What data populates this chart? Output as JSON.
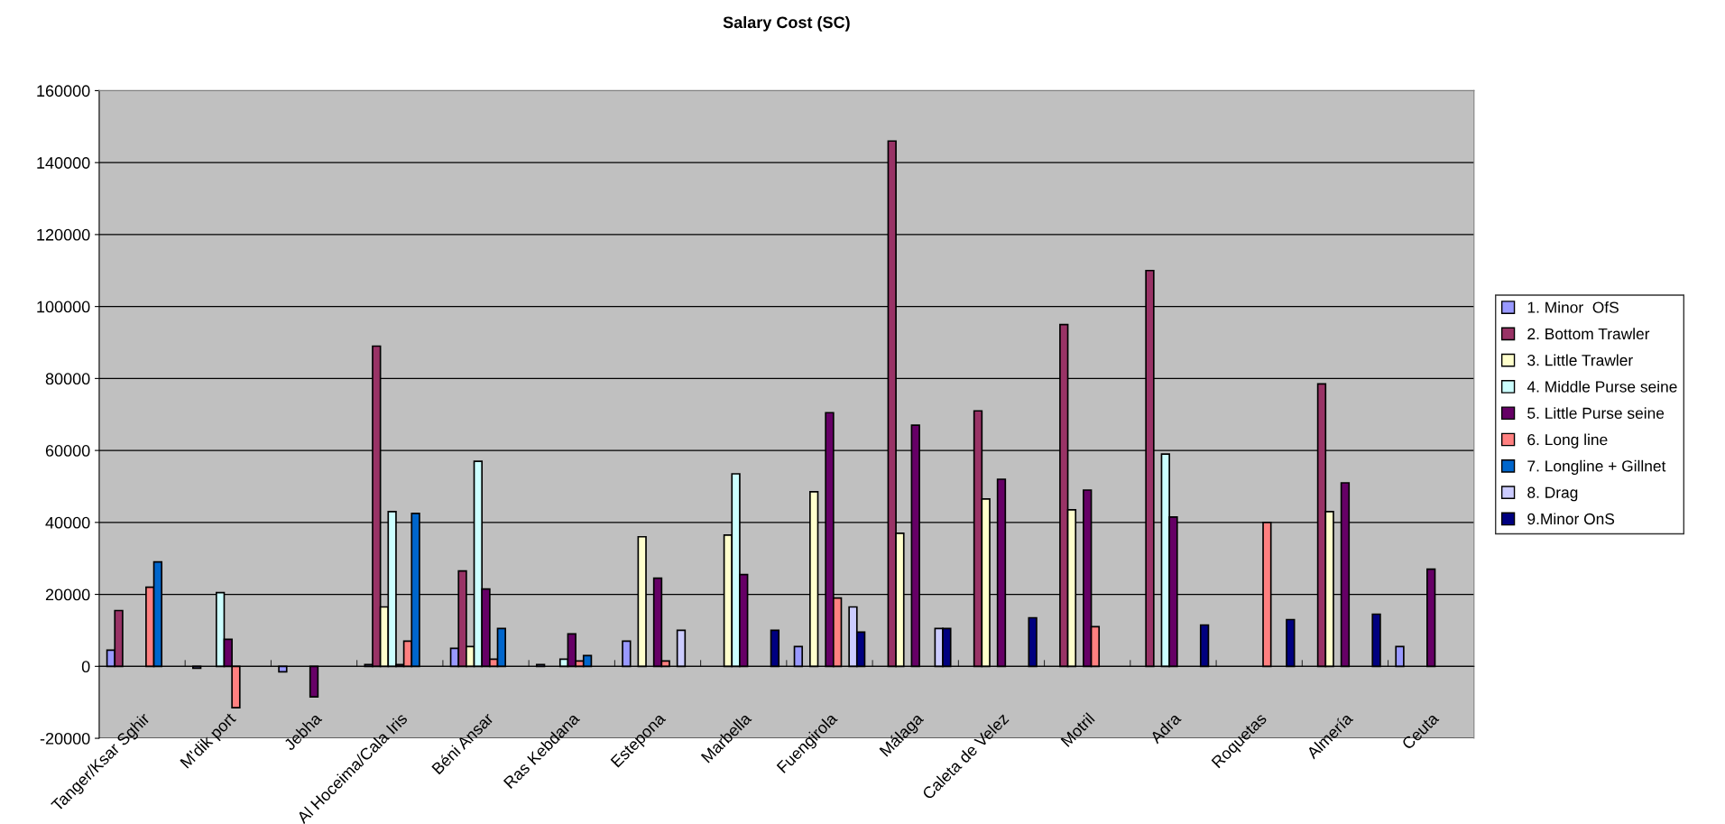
{
  "chart_data": {
    "type": "bar",
    "title": "Salary Cost (SC)",
    "categories": [
      "Tanger/Ksar Sghir",
      "M'dik port",
      "Jebha",
      "Al Hoceima/Cala Iris",
      "Béni Ansar",
      "Ras Kebdana",
      "Estepona",
      "Marbella",
      "Fuengirola",
      "Málaga",
      "Caleta de Velez",
      "Motril",
      "Adra",
      "Roquetas",
      "Almería",
      "Ceuta"
    ],
    "series": [
      {
        "name": "1. Minor  OfS",
        "color": "#9999ff",
        "values": [
          4500,
          -500,
          -1500,
          500,
          5000,
          500,
          7000,
          null,
          5500,
          null,
          null,
          null,
          null,
          null,
          null,
          5500
        ]
      },
      {
        "name": "2. Bottom Trawler",
        "color": "#993366",
        "values": [
          15500,
          null,
          null,
          89000,
          26500,
          null,
          null,
          null,
          null,
          146000,
          71000,
          95000,
          110000,
          null,
          78500,
          null
        ]
      },
      {
        "name": "3. Little Trawler",
        "color": "#ffffcc",
        "values": [
          null,
          null,
          null,
          16500,
          5500,
          null,
          36000,
          36500,
          48500,
          37000,
          46500,
          43500,
          null,
          null,
          43000,
          null
        ]
      },
      {
        "name": "4. Middle Purse seine",
        "color": "#ccffff",
        "values": [
          null,
          20500,
          null,
          43000,
          57000,
          2000,
          null,
          53500,
          null,
          null,
          null,
          null,
          59000,
          null,
          null,
          null
        ]
      },
      {
        "name": "5. Little Purse seine",
        "color": "#660066",
        "values": [
          null,
          7500,
          -8500,
          500,
          21500,
          9000,
          24500,
          25500,
          70500,
          67000,
          52000,
          49000,
          41500,
          null,
          51000,
          27000
        ]
      },
      {
        "name": "6. Long line",
        "color": "#ff8080",
        "values": [
          22000,
          -11500,
          null,
          7000,
          2000,
          1500,
          1500,
          null,
          19000,
          null,
          null,
          11000,
          null,
          40000,
          null,
          null
        ]
      },
      {
        "name": "7. Longline + Gillnet",
        "color": "#0066cc",
        "values": [
          29000,
          null,
          null,
          42500,
          10500,
          3000,
          null,
          null,
          null,
          null,
          null,
          null,
          null,
          null,
          null,
          null
        ]
      },
      {
        "name": "8. Drag",
        "color": "#ccccff",
        "values": [
          null,
          null,
          null,
          null,
          null,
          null,
          10000,
          null,
          16500,
          10500,
          null,
          null,
          null,
          null,
          null,
          null
        ]
      },
      {
        "name": "9.Minor OnS",
        "color": "#000080",
        "values": [
          null,
          null,
          null,
          null,
          null,
          null,
          null,
          10000,
          9500,
          10500,
          13500,
          null,
          11500,
          13000,
          14500,
          null
        ]
      }
    ],
    "ylim": [
      -20000,
      160000
    ],
    "yticks": [
      -20000,
      0,
      20000,
      40000,
      60000,
      80000,
      100000,
      120000,
      140000,
      160000
    ],
    "grid": "y",
    "legend": "right"
  }
}
